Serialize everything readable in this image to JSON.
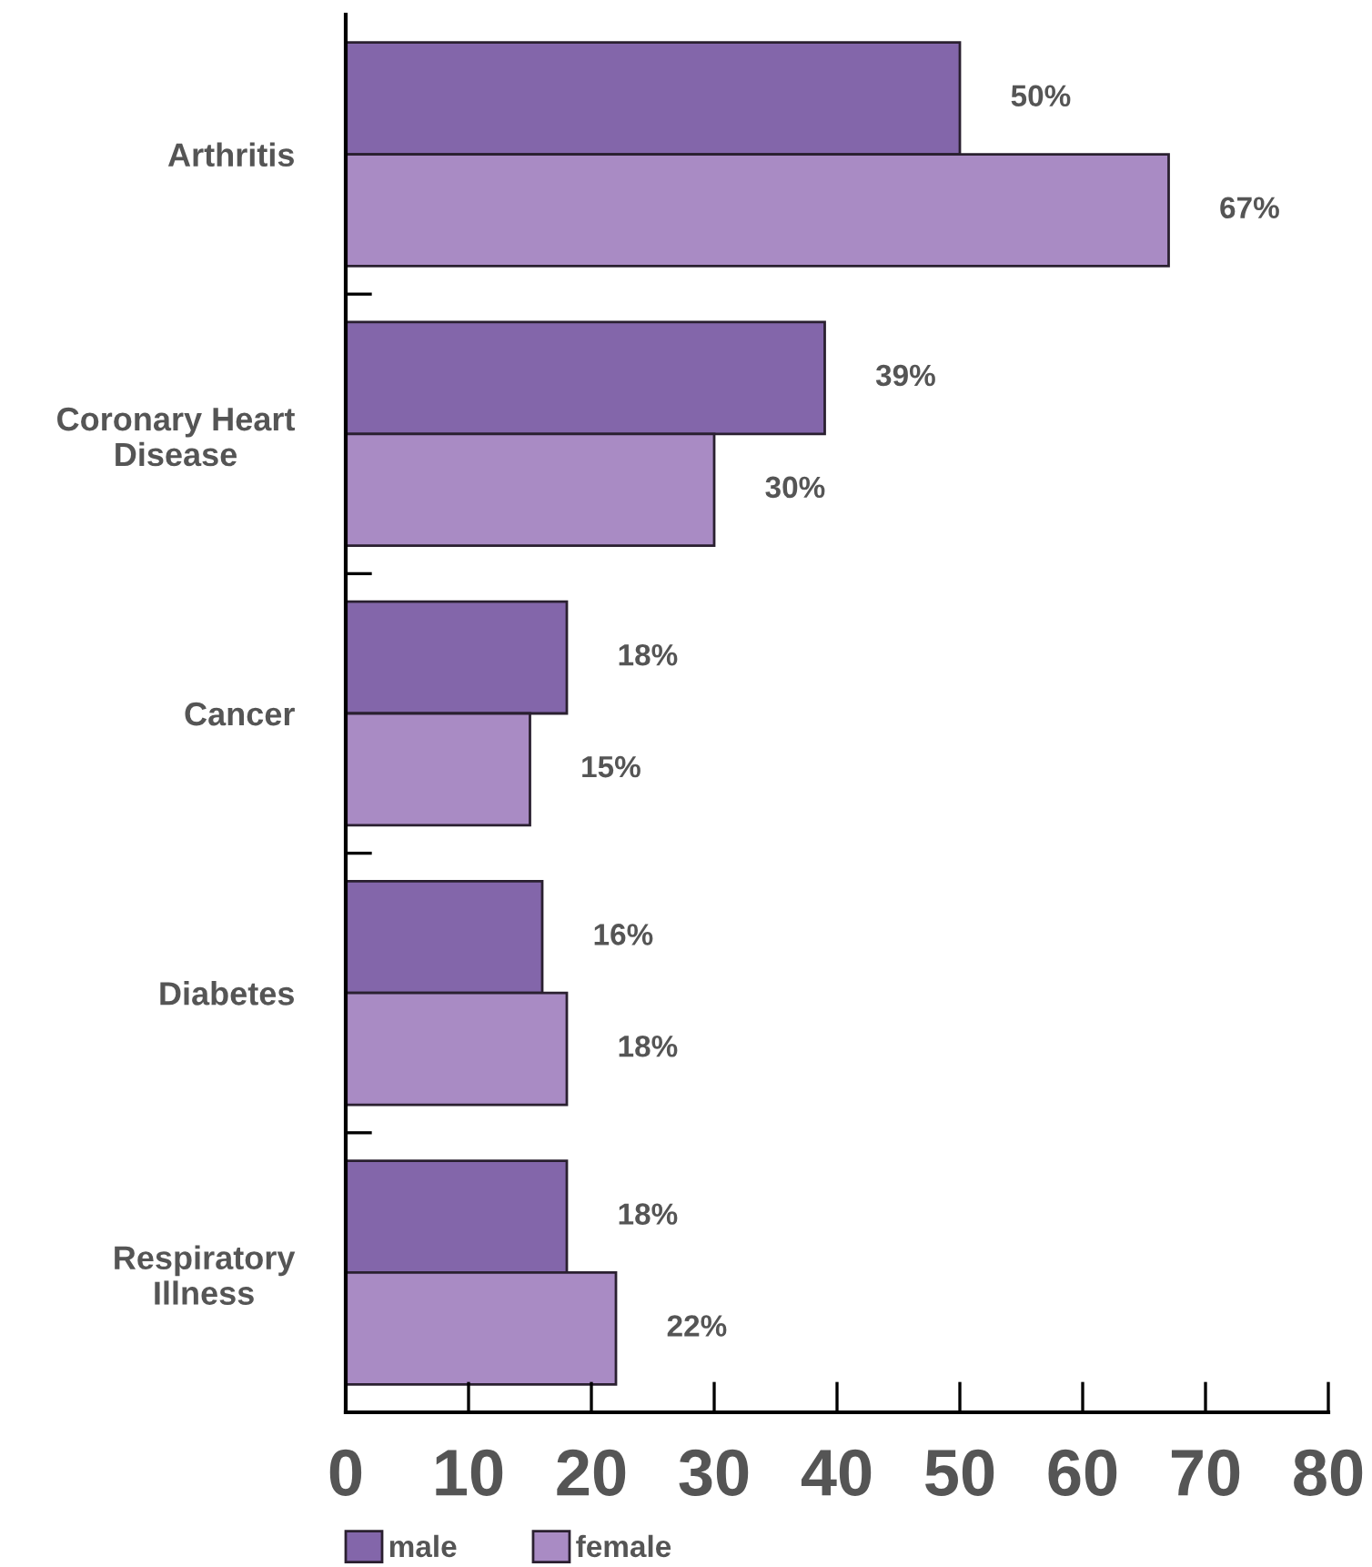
{
  "chart_data": {
    "type": "bar",
    "orientation": "horizontal",
    "categories": [
      "Arthritis",
      "Coronary Heart Disease",
      "Cancer",
      "Diabetes",
      "Respiratory Illness"
    ],
    "series": [
      {
        "name": "male",
        "color": "#8366aa",
        "values": [
          50,
          39,
          18,
          16,
          18
        ],
        "value_labels": [
          "50%",
          "39%",
          "18%",
          "16%",
          "18%"
        ]
      },
      {
        "name": "female",
        "color": "#a98bc4",
        "values": [
          67,
          30,
          15,
          18,
          22
        ],
        "value_labels": [
          "67%",
          "30%",
          "15%",
          "18%",
          "22%"
        ]
      }
    ],
    "xlim": [
      0,
      80
    ],
    "xticks": [
      0,
      10,
      20,
      30,
      40,
      50,
      60,
      70,
      80
    ],
    "grid": false,
    "legend": "bottom left"
  }
}
